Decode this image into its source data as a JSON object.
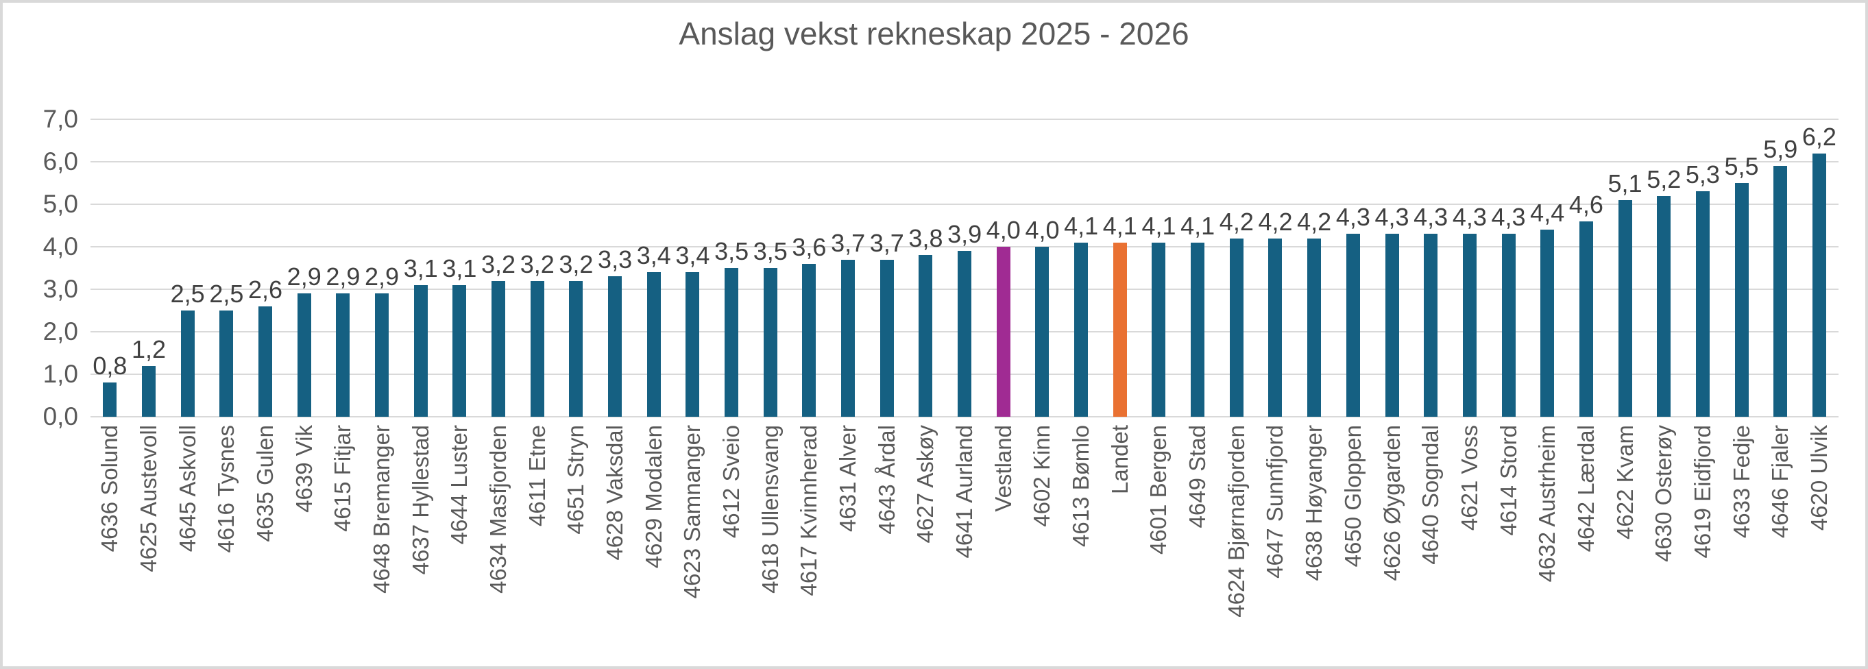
{
  "colors": {
    "bar_default": "#156082",
    "bar_vestland": "#A02B93",
    "bar_landet": "#E97132",
    "gridline": "#d9d9d9",
    "title_text": "#595959",
    "axis_text": "#595959",
    "value_label_text": "#404040"
  },
  "chart_data": {
    "type": "bar",
    "title": "Anslag vekst rekneskap 2025 - 2026",
    "xlabel": "",
    "ylabel": "",
    "ylim": [
      0,
      7
    ],
    "ytick_step": 1,
    "ytick_labels": [
      "0,0",
      "1,0",
      "2,0",
      "3,0",
      "4,0",
      "5,0",
      "6,0",
      "7,0"
    ],
    "grid": true,
    "legend": false,
    "decimal_separator": ",",
    "categories": [
      "4636 Solund",
      "4625 Austevoll",
      "4645 Askvoll",
      "4616 Tysnes",
      "4635 Gulen",
      "4639 Vik",
      "4615 Fitjar",
      "4648 Bremanger",
      "4637 Hyllestad",
      "4644 Luster",
      "4634 Masfjorden",
      "4611 Etne",
      "4651 Stryn",
      "4628 Vaksdal",
      "4629 Modalen",
      "4623 Samnanger",
      "4612 Sveio",
      "4618 Ullensvang",
      "4617 Kvinnherad",
      "4631 Alver",
      "4643 Årdal",
      "4627 Askøy",
      "4641 Aurland",
      "Vestland",
      "4602 Kinn",
      "4613 Bømlo",
      "Landet",
      "4601 Bergen",
      "4649 Stad",
      "4624 Bjørnafjorden",
      "4647 Sunnfjord",
      "4638 Høyanger",
      "4650 Gloppen",
      "4626 Øygarden",
      "4640 Sogndal",
      "4621 Voss",
      "4614 Stord",
      "4632 Austrheim",
      "4642 Lærdal",
      "4622 Kvam",
      "4630 Osterøy",
      "4619 Eidfjord",
      "4633 Fedje",
      "4646 Fjaler",
      "4620 Ulvik"
    ],
    "values": [
      0.8,
      1.2,
      2.5,
      2.5,
      2.6,
      2.9,
      2.9,
      2.9,
      3.1,
      3.1,
      3.2,
      3.2,
      3.2,
      3.3,
      3.4,
      3.4,
      3.5,
      3.5,
      3.6,
      3.7,
      3.7,
      3.8,
      3.9,
      4.0,
      4.0,
      4.1,
      4.1,
      4.1,
      4.1,
      4.2,
      4.2,
      4.2,
      4.3,
      4.3,
      4.3,
      4.3,
      4.3,
      4.4,
      4.6,
      5.1,
      5.2,
      5.3,
      5.5,
      5.9,
      6.2
    ],
    "value_labels": [
      "0,8",
      "1,2",
      "2,5",
      "2,5",
      "2,6",
      "2,9",
      "2,9",
      "2,9",
      "3,1",
      "3,1",
      "3,2",
      "3,2",
      "3,2",
      "3,3",
      "3,4",
      "3,4",
      "3,5",
      "3,5",
      "3,6",
      "3,7",
      "3,7",
      "3,8",
      "3,9",
      "4,0",
      "4,0",
      "4,1",
      "4,1",
      "4,1",
      "4,1",
      "4,2",
      "4,2",
      "4,2",
      "4,3",
      "4,3",
      "4,3",
      "4,3",
      "4,3",
      "4,4",
      "4,6",
      "5,1",
      "5,2",
      "5,3",
      "5,5",
      "5,9",
      "6,2"
    ],
    "highlights": [
      {
        "category": "Vestland",
        "color": "#A02B93"
      },
      {
        "category": "Landet",
        "color": "#E97132"
      }
    ]
  }
}
